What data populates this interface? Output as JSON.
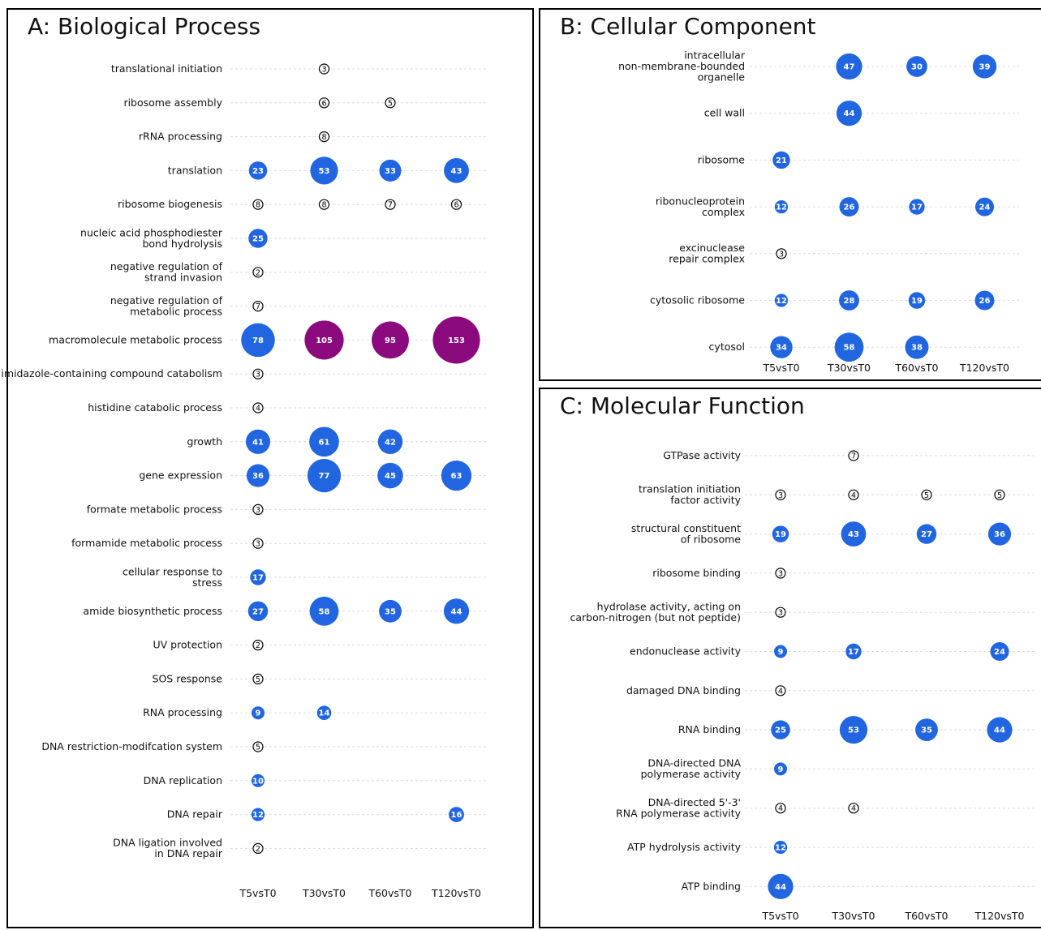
{
  "colors": {
    "blue": "#2166e0",
    "purple": "#8b0a7e",
    "small_outline": "#000000"
  },
  "chart_data": [
    {
      "type": "scatter",
      "title": "A: Biological Process",
      "columns": [
        "T5vsT0",
        "T30vsT0",
        "T60vsT0",
        "T120vsT0"
      ],
      "rows": [
        {
          "label": [
            "translational initiation"
          ],
          "values": [
            null,
            3,
            null,
            null
          ]
        },
        {
          "label": [
            "ribosome assembly"
          ],
          "values": [
            null,
            6,
            5,
            null
          ]
        },
        {
          "label": [
            "rRNA processing"
          ],
          "values": [
            null,
            8,
            null,
            null
          ]
        },
        {
          "label": [
            "translation"
          ],
          "values": [
            23,
            53,
            33,
            43
          ]
        },
        {
          "label": [
            "ribosome biogenesis"
          ],
          "values": [
            8,
            8,
            7,
            6
          ]
        },
        {
          "label": [
            "nucleic acid phosphodiester",
            "bond hydrolysis"
          ],
          "values": [
            25,
            null,
            null,
            null
          ]
        },
        {
          "label": [
            "negative regulation of",
            "strand invasion"
          ],
          "values": [
            2,
            null,
            null,
            null
          ]
        },
        {
          "label": [
            "negative regulation of",
            "metabolic process"
          ],
          "values": [
            7,
            null,
            null,
            null
          ]
        },
        {
          "label": [
            "macromolecule metabolic process"
          ],
          "values": [
            78,
            105,
            95,
            153
          ]
        },
        {
          "label": [
            "imidazole-containing compound catabolism"
          ],
          "values": [
            3,
            null,
            null,
            null
          ]
        },
        {
          "label": [
            "histidine catabolic process"
          ],
          "values": [
            4,
            null,
            null,
            null
          ]
        },
        {
          "label": [
            "growth"
          ],
          "values": [
            41,
            61,
            42,
            null
          ]
        },
        {
          "label": [
            "gene expression"
          ],
          "values": [
            36,
            77,
            45,
            63
          ]
        },
        {
          "label": [
            "formate metabolic process"
          ],
          "values": [
            3,
            null,
            null,
            null
          ]
        },
        {
          "label": [
            "formamide metabolic process"
          ],
          "values": [
            3,
            null,
            null,
            null
          ]
        },
        {
          "label": [
            "cellular response to",
            "stress"
          ],
          "values": [
            17,
            null,
            null,
            null
          ]
        },
        {
          "label": [
            "amide biosynthetic process"
          ],
          "values": [
            27,
            58,
            35,
            44
          ]
        },
        {
          "label": [
            "UV protection"
          ],
          "values": [
            2,
            null,
            null,
            null
          ]
        },
        {
          "label": [
            "SOS response"
          ],
          "values": [
            5,
            null,
            null,
            null
          ]
        },
        {
          "label": [
            "RNA processing"
          ],
          "values": [
            9,
            14,
            null,
            null
          ]
        },
        {
          "label": [
            "DNA restriction-modifcation system"
          ],
          "values": [
            5,
            null,
            null,
            null
          ]
        },
        {
          "label": [
            "DNA replication"
          ],
          "values": [
            10,
            null,
            null,
            null
          ]
        },
        {
          "label": [
            "DNA repair"
          ],
          "values": [
            12,
            null,
            null,
            16
          ]
        },
        {
          "label": [
            "DNA ligation involved",
            "in DNA repair"
          ],
          "values": [
            2,
            null,
            null,
            null
          ]
        }
      ],
      "highlight_values": [
        105,
        95,
        153
      ]
    },
    {
      "type": "scatter",
      "title": "B: Cellular Component",
      "columns": [
        "T5vsT0",
        "T30vsT0",
        "T60vsT0",
        "T120vsT0"
      ],
      "rows": [
        {
          "label": [
            "intracellular",
            "non-membrane-bounded",
            "organelle"
          ],
          "values": [
            null,
            47,
            30,
            39
          ]
        },
        {
          "label": [
            "cell wall"
          ],
          "values": [
            null,
            44,
            null,
            null
          ]
        },
        {
          "label": [
            "ribosome"
          ],
          "values": [
            21,
            null,
            null,
            null
          ]
        },
        {
          "label": [
            "ribonucleoprotein",
            "complex"
          ],
          "values": [
            12,
            26,
            17,
            24
          ]
        },
        {
          "label": [
            "excinuclease",
            "repair complex"
          ],
          "values": [
            3,
            null,
            null,
            null
          ]
        },
        {
          "label": [
            "cytosolic ribosome"
          ],
          "values": [
            12,
            28,
            19,
            26
          ]
        },
        {
          "label": [
            "cytosol"
          ],
          "values": [
            34,
            58,
            38,
            null
          ]
        }
      ],
      "highlight_values": []
    },
    {
      "type": "scatter",
      "title": "C: Molecular Function",
      "columns": [
        "T5vsT0",
        "T30vsT0",
        "T60vsT0",
        "T120vsT0"
      ],
      "rows": [
        {
          "label": [
            "GTPase activity"
          ],
          "values": [
            null,
            7,
            null,
            null
          ]
        },
        {
          "label": [
            "translation initiation",
            "factor activity"
          ],
          "values": [
            3,
            4,
            5,
            5
          ]
        },
        {
          "label": [
            "structural constituent",
            "of ribosome"
          ],
          "values": [
            19,
            43,
            27,
            36
          ]
        },
        {
          "label": [
            "ribosome binding"
          ],
          "values": [
            3,
            null,
            null,
            null
          ]
        },
        {
          "label": [
            "hydrolase activity, acting on",
            "carbon-nitrogen (but not peptide)"
          ],
          "values": [
            3,
            null,
            null,
            null
          ]
        },
        {
          "label": [
            "endonuclease activity"
          ],
          "values": [
            9,
            17,
            null,
            24
          ]
        },
        {
          "label": [
            "damaged DNA binding"
          ],
          "values": [
            4,
            null,
            null,
            null
          ]
        },
        {
          "label": [
            "RNA binding"
          ],
          "values": [
            25,
            53,
            35,
            44
          ]
        },
        {
          "label": [
            "DNA-directed DNA",
            "polymerase activity"
          ],
          "values": [
            9,
            null,
            null,
            null
          ]
        },
        {
          "label": [
            "DNA-directed 5'-3'",
            "RNA polymerase activity"
          ],
          "values": [
            4,
            4,
            null,
            null
          ]
        },
        {
          "label": [
            "ATP hydrolysis activity"
          ],
          "values": [
            12,
            null,
            null,
            null
          ]
        },
        {
          "label": [
            "ATP binding"
          ],
          "values": [
            44,
            null,
            null,
            null
          ]
        }
      ],
      "highlight_values": []
    }
  ]
}
